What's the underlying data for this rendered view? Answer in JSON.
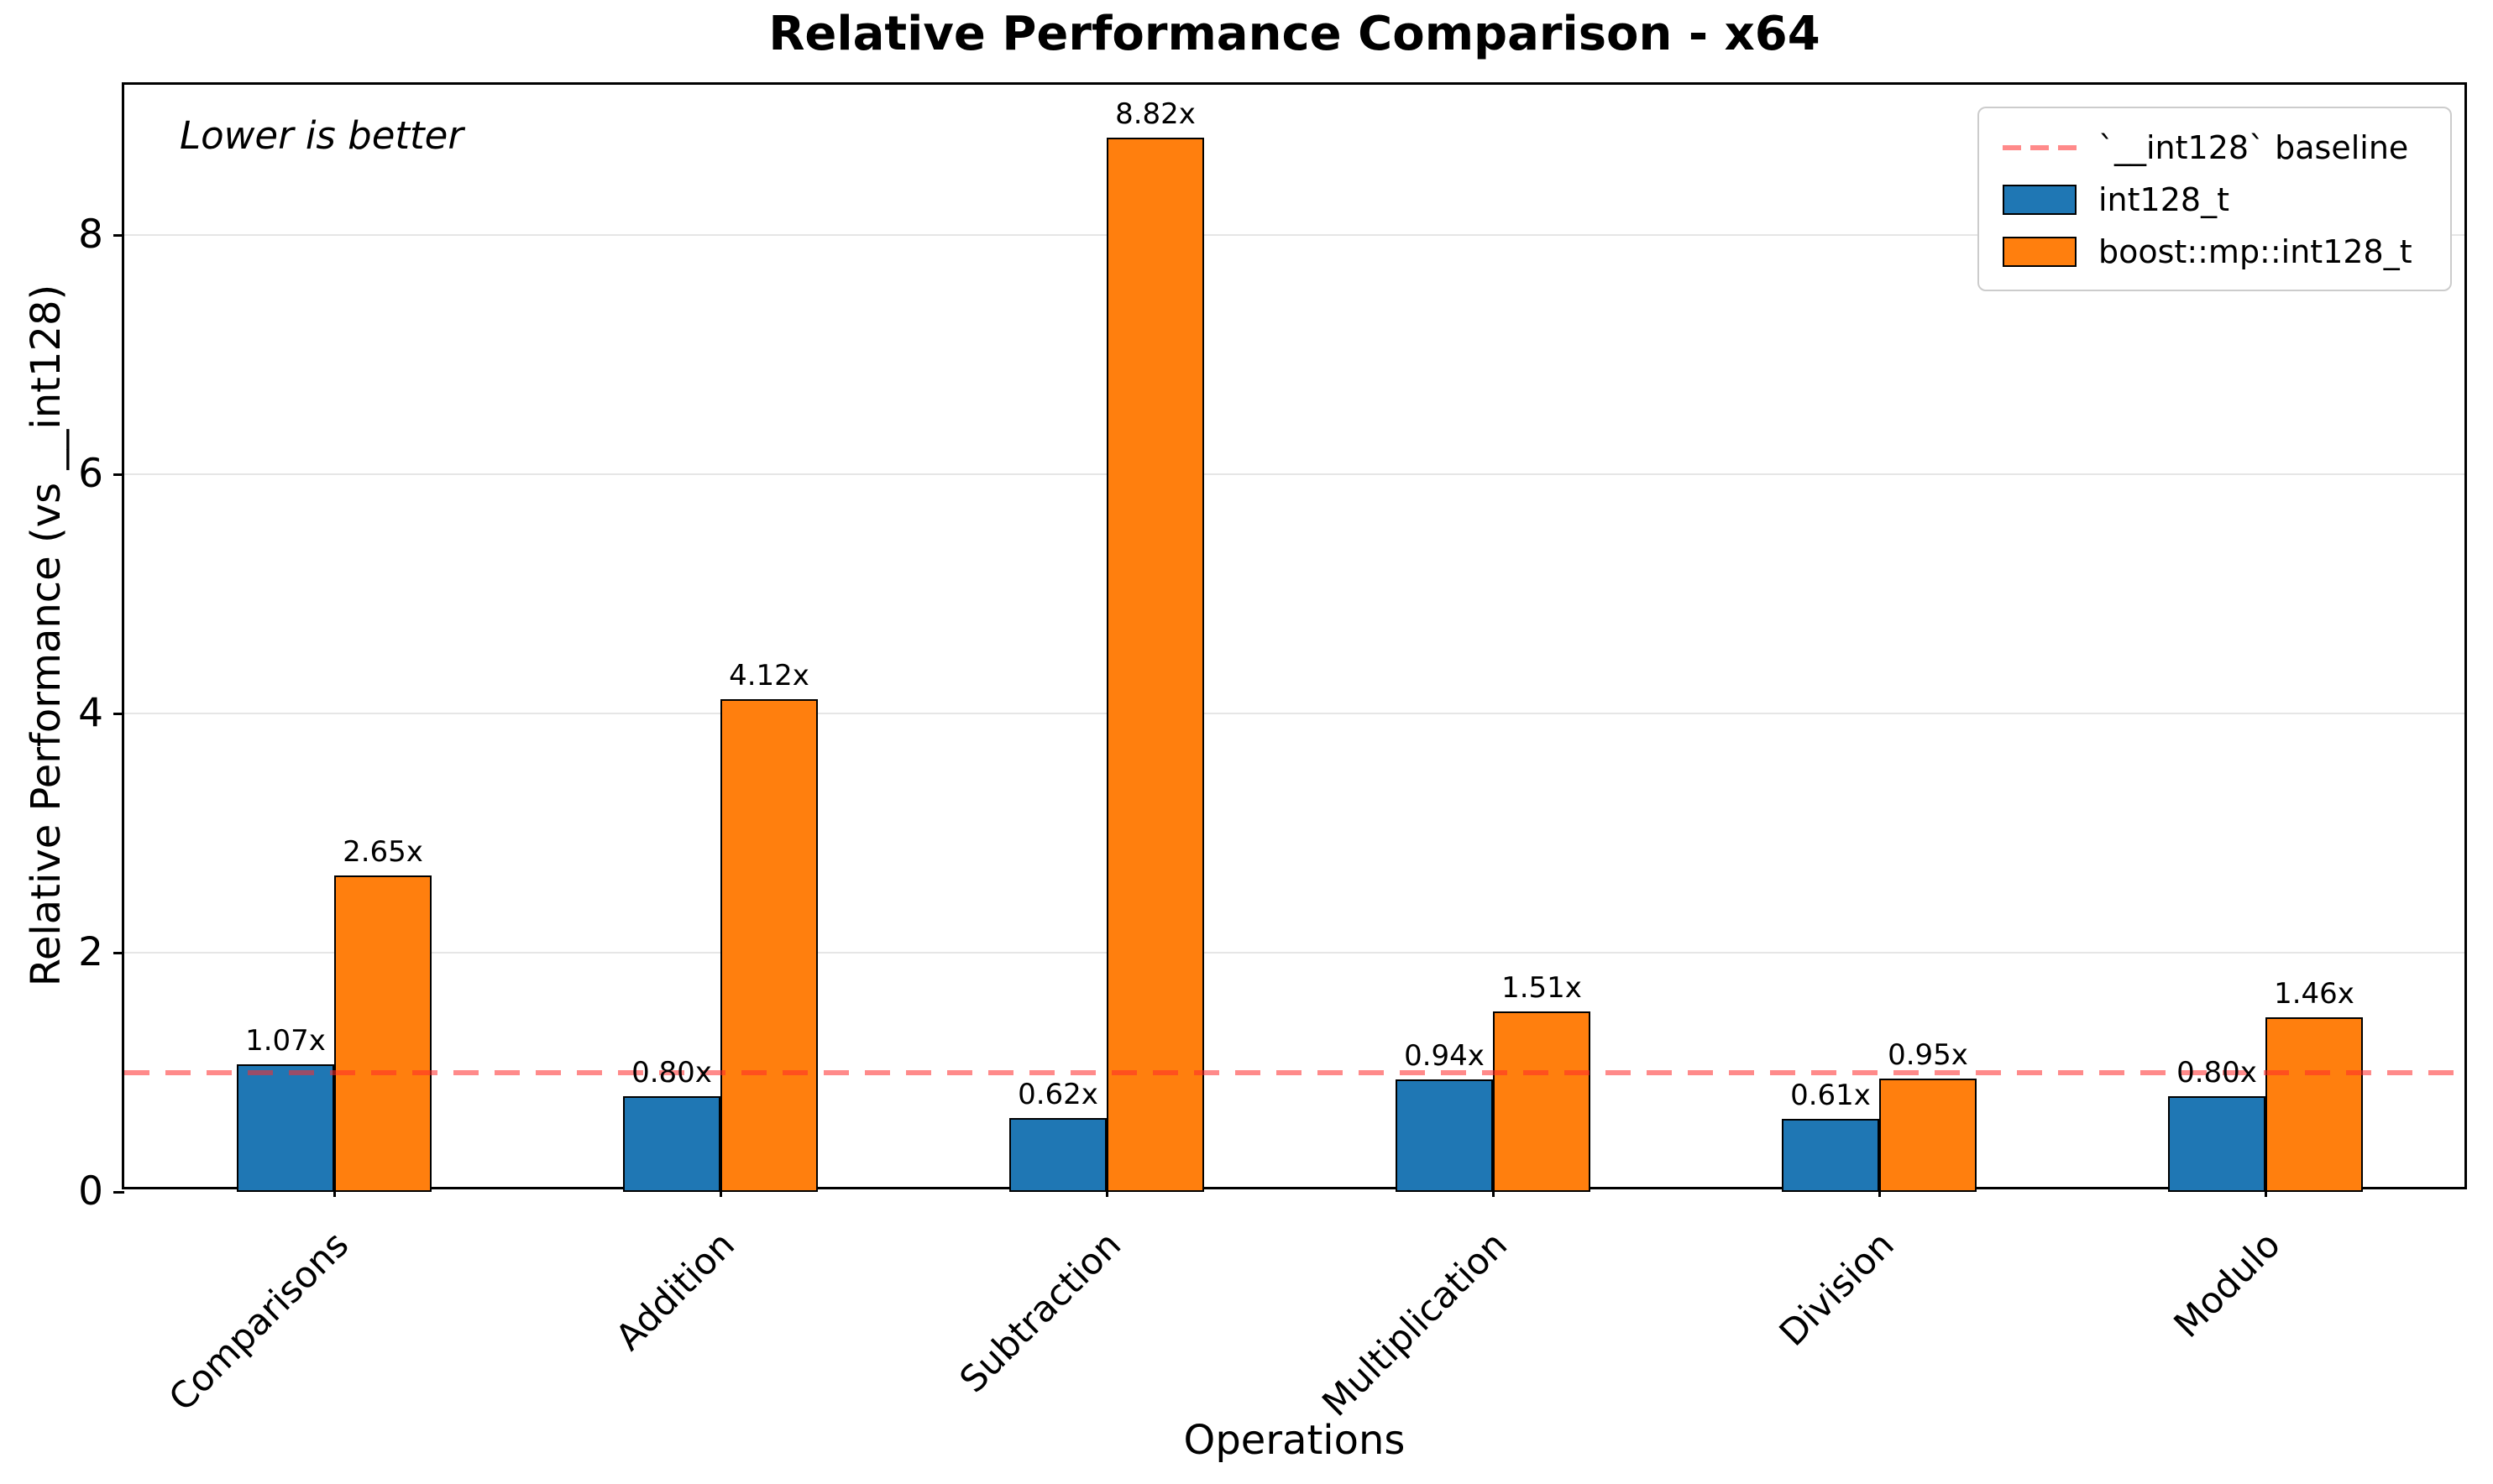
{
  "chart_data": {
    "type": "bar",
    "title": "Relative Performance Comparison - x64",
    "xlabel": "Operations",
    "ylabel": "Relative Performance (vs __int128)",
    "annotation": "Lower is better",
    "categories": [
      "Comparisons",
      "Addition",
      "Subtraction",
      "Multiplication",
      "Division",
      "Modulo"
    ],
    "series": [
      {
        "name": "int128_t",
        "color": "#1f77b4",
        "values": [
          1.07,
          0.8,
          0.62,
          0.94,
          0.61,
          0.8
        ],
        "labels": [
          "1.07x",
          "0.80x",
          "0.62x",
          "0.94x",
          "0.61x",
          "0.80x"
        ]
      },
      {
        "name": "boost::mp::int128_t",
        "color": "#ff7f0e",
        "values": [
          2.65,
          4.12,
          8.82,
          1.51,
          0.95,
          1.46
        ],
        "labels": [
          "2.65x",
          "4.12x",
          "8.82x",
          "1.51x",
          "0.95x",
          "1.46x"
        ]
      }
    ],
    "baseline": {
      "value": 1.0,
      "label": "`__int128` baseline",
      "color": "rgba(255,42,42,0.55)"
    },
    "yticks": [
      0,
      2,
      4,
      6,
      8
    ],
    "ylim": [
      0,
      9.26
    ],
    "grid": "horizontal",
    "legend_position": "upper right"
  }
}
